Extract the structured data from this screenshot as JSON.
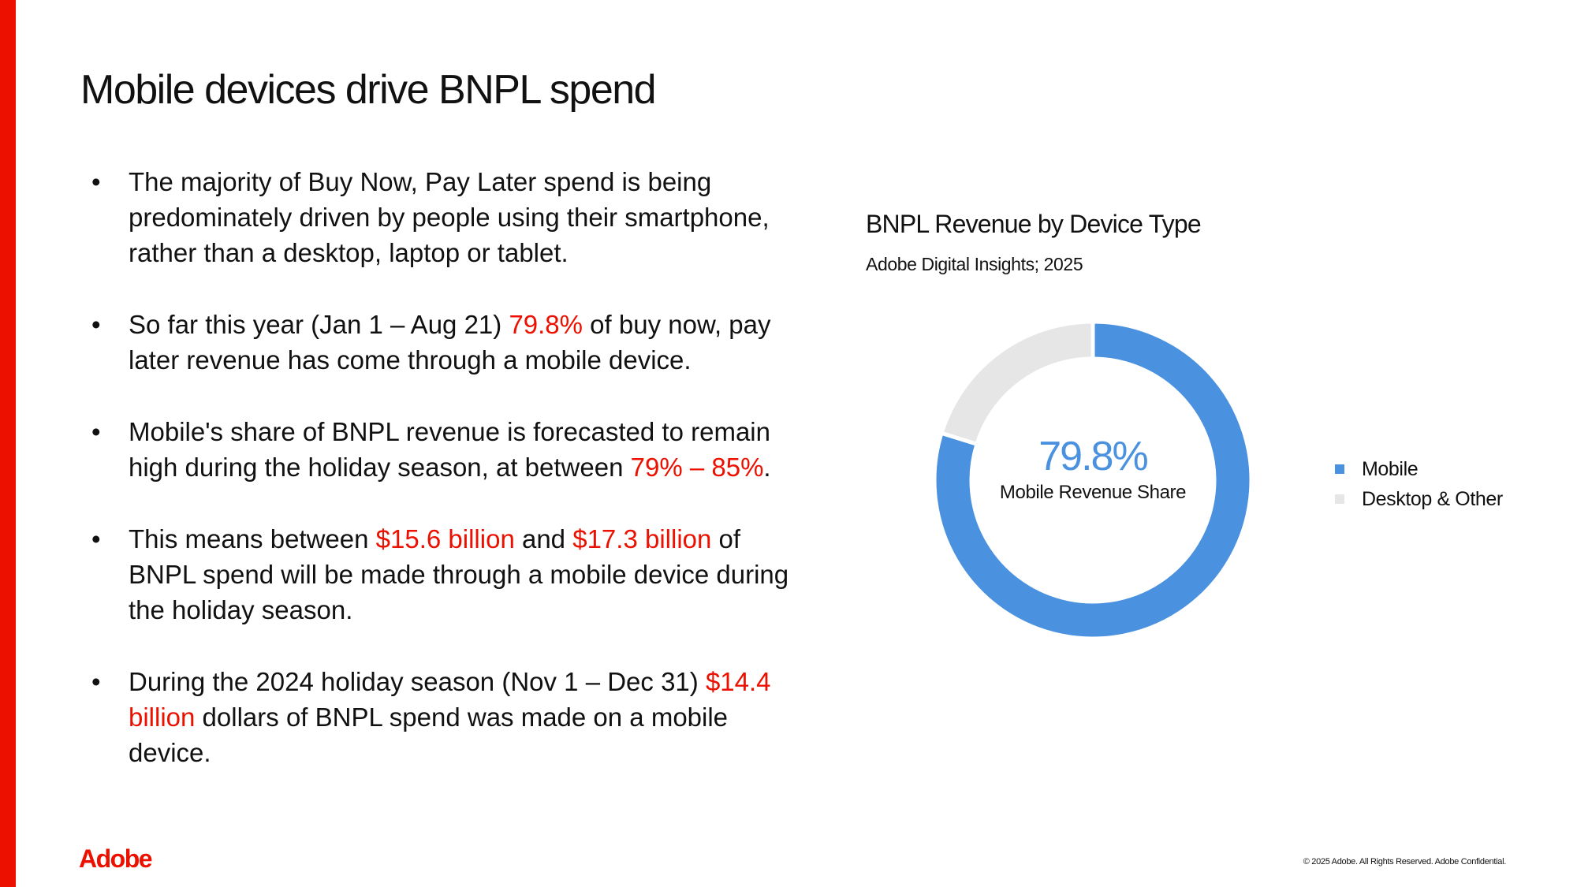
{
  "title": "Mobile devices drive BNPL spend",
  "bullets": [
    [
      {
        "t": "The majority of Buy Now, Pay Later spend is being predominately driven by people using their smartphone, rather than a desktop, laptop or tablet."
      }
    ],
    [
      {
        "t": "So far this year (Jan 1 – Aug 21) "
      },
      {
        "t": "79.8%",
        "hl": true
      },
      {
        "t": " of buy now, pay later revenue has come through a mobile device."
      }
    ],
    [
      {
        "t": "Mobile's share of BNPL revenue is forecasted to remain high during the holiday season, at between "
      },
      {
        "t": "79% – 85%",
        "hl": true
      },
      {
        "t": "."
      }
    ],
    [
      {
        "t": "This means between "
      },
      {
        "t": "$15.6 billion",
        "hl": true
      },
      {
        "t": " and "
      },
      {
        "t": "$17.3 billion",
        "hl": true
      },
      {
        "t": " of BNPL spend will be made through a mobile device during the holiday season."
      }
    ],
    [
      {
        "t": "During the 2024 holiday season (Nov 1 – Dec 31) "
      },
      {
        "t": "$14.4 billion",
        "hl": true
      },
      {
        "t": " dollars of BNPL spend was made on a mobile device."
      }
    ]
  ],
  "bullet_char": "•",
  "chart_data": {
    "type": "pie",
    "variant": "donut",
    "title": "BNPL Revenue by Device Type",
    "subtitle": "Adobe Digital Insights; 2025",
    "categories": [
      "Mobile",
      "Desktop & Other"
    ],
    "values": [
      79.8,
      20.2
    ],
    "colors": [
      "#4a91e0",
      "#e6e6e6"
    ],
    "center_value": "79.8%",
    "center_label": "Mobile Revenue Share",
    "legend_position": "right"
  },
  "footer": {
    "logo": "Adobe",
    "copyright": "© 2025 Adobe. All Rights Reserved. Adobe Confidential."
  },
  "colors": {
    "accent": "#eb1000"
  }
}
